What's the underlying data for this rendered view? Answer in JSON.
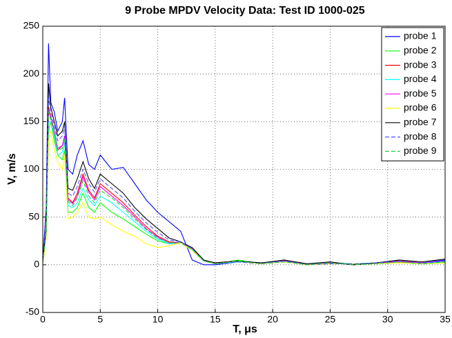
{
  "chart_data": {
    "type": "line",
    "title": "9 Probe MPDV Velocity Data: Test ID 1000-025",
    "x_label": "T, μs",
    "y_label": "V, m/s",
    "x": [
      0,
      0.3,
      0.5,
      0.7,
      1,
      1.3,
      1.7,
      1.9,
      2.2,
      2.6,
      3,
      3.5,
      4,
      4.5,
      5,
      6,
      7,
      8,
      9,
      10,
      11,
      12,
      13,
      14,
      15,
      17,
      19,
      21,
      23,
      25,
      27,
      29,
      31,
      33,
      35
    ],
    "series": [
      {
        "name": "probe 1",
        "color": "#0000ff",
        "dashed": false,
        "values": [
          5,
          60,
          232,
          170,
          160,
          140,
          150,
          175,
          100,
          95,
          115,
          130,
          105,
          100,
          115,
          100,
          102,
          85,
          68,
          55,
          45,
          35,
          5,
          0,
          0,
          3,
          2,
          4,
          0,
          2,
          0,
          2,
          4,
          2,
          5
        ]
      },
      {
        "name": "probe 2",
        "color": "#00ff00",
        "dashed": false,
        "values": [
          2,
          30,
          140,
          150,
          130,
          115,
          110,
          120,
          55,
          55,
          60,
          75,
          60,
          55,
          65,
          55,
          48,
          40,
          32,
          25,
          22,
          23,
          15,
          4,
          1,
          5,
          1,
          4,
          0,
          2,
          1,
          1,
          3,
          1,
          2
        ]
      },
      {
        "name": "probe 3",
        "color": "#ff0000",
        "dashed": false,
        "values": [
          3,
          35,
          165,
          155,
          140,
          120,
          125,
          135,
          70,
          65,
          75,
          95,
          78,
          70,
          85,
          75,
          65,
          52,
          40,
          30,
          24,
          23,
          17,
          4,
          2,
          4,
          1,
          5,
          0,
          2,
          0,
          2,
          4,
          2,
          3
        ]
      },
      {
        "name": "probe 4",
        "color": "#00ffff",
        "dashed": false,
        "values": [
          2,
          32,
          150,
          150,
          135,
          115,
          118,
          128,
          62,
          60,
          65,
          80,
          68,
          62,
          72,
          65,
          55,
          45,
          35,
          27,
          22,
          23,
          16,
          4,
          1,
          3,
          2,
          4,
          1,
          2,
          1,
          2,
          3,
          2,
          3
        ]
      },
      {
        "name": "probe 5",
        "color": "#ff00ff",
        "dashed": false,
        "values": [
          3,
          35,
          160,
          155,
          140,
          122,
          125,
          135,
          68,
          64,
          72,
          92,
          76,
          68,
          82,
          72,
          62,
          50,
          38,
          29,
          23,
          23,
          17,
          4,
          2,
          4,
          1,
          4,
          0,
          2,
          0,
          2,
          3,
          2,
          4
        ]
      },
      {
        "name": "probe 6",
        "color": "#ffff00",
        "dashed": false,
        "values": [
          1,
          28,
          130,
          140,
          120,
          108,
          100,
          115,
          48,
          50,
          55,
          65,
          50,
          48,
          50,
          42,
          35,
          30,
          22,
          18,
          20,
          23,
          15,
          5,
          1,
          4,
          1,
          3,
          0,
          1,
          1,
          1,
          2,
          1,
          2
        ]
      },
      {
        "name": "probe 7",
        "color": "#000000",
        "dashed": false,
        "values": [
          3,
          40,
          190,
          165,
          150,
          135,
          140,
          150,
          80,
          78,
          90,
          108,
          90,
          80,
          95,
          85,
          75,
          60,
          48,
          38,
          28,
          24,
          18,
          5,
          2,
          4,
          2,
          5,
          1,
          3,
          0,
          2,
          5,
          3,
          6
        ]
      },
      {
        "name": "probe 8",
        "color": "#5050ff",
        "dashed": true,
        "values": [
          3,
          38,
          175,
          160,
          145,
          130,
          135,
          145,
          75,
          72,
          82,
          100,
          85,
          76,
          90,
          80,
          70,
          56,
          44,
          34,
          26,
          24,
          17,
          4,
          1,
          3,
          1,
          4,
          0,
          1,
          1,
          2,
          4,
          2,
          4
        ]
      },
      {
        "name": "probe 9",
        "color": "#20d040",
        "dashed": true,
        "values": [
          2,
          34,
          160,
          152,
          138,
          120,
          122,
          132,
          66,
          62,
          70,
          88,
          72,
          65,
          78,
          70,
          60,
          48,
          37,
          28,
          23,
          23,
          16,
          4,
          1,
          4,
          1,
          3,
          0,
          2,
          0,
          1,
          3,
          1,
          3
        ]
      }
    ],
    "xlim": [
      0,
      35
    ],
    "xticks": [
      0,
      5,
      10,
      15,
      20,
      25,
      30,
      35
    ],
    "ylim": [
      -50,
      250
    ],
    "yticks": [
      -50,
      0,
      50,
      100,
      150,
      200,
      250
    ],
    "grid": true,
    "legend": "northeast"
  }
}
